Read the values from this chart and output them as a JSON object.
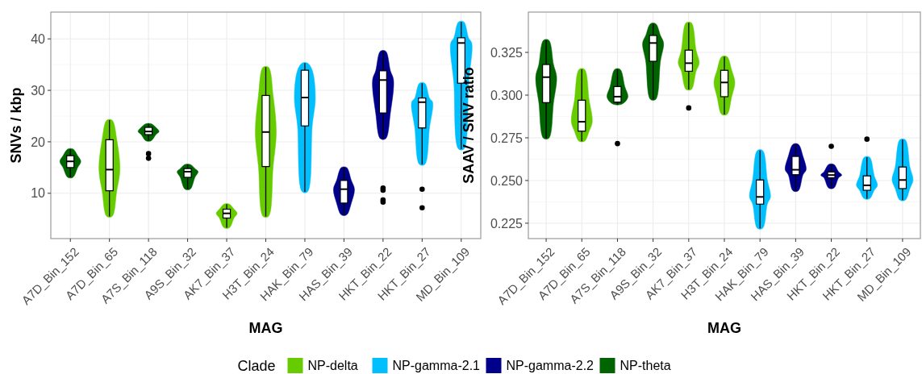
{
  "chart_data": [
    {
      "type": "box",
      "xlabel": "MAG",
      "ylabel": "SNVs / kbp",
      "categories": [
        "A7D_Bin_152",
        "A7D_Bin_65",
        "A7S_Bin_118",
        "A9S_Bin_32",
        "AK7_Bin_37",
        "H3T_Bin_24",
        "HAK_Bin_79",
        "HAS_Bin_39",
        "HKT_Bin_22",
        "HKT_Bin_27",
        "MD_Bin_109"
      ],
      "ylim": [
        1.2,
        45.2
      ],
      "yticks": [
        10,
        20,
        30,
        40
      ],
      "grid": true,
      "series": [
        {
          "color": "#66cc00",
          "boxes": [
            null,
            {
              "low": 5.5,
              "q1": 10.5,
              "median": 14.6,
              "q3": 20.4,
              "high": 24.2
            },
            null,
            null,
            {
              "low": 3.3,
              "q1": 5.2,
              "median": 6.1,
              "q3": 6.9,
              "high": 7.9
            },
            {
              "low": 5.5,
              "q1": 15.2,
              "median": 21.9,
              "q3": 29.0,
              "high": 34.5
            },
            null,
            null,
            null,
            null,
            null
          ]
        },
        {
          "color": "#00bfff",
          "boxes": [
            null,
            null,
            null,
            null,
            null,
            null,
            {
              "low": 10.3,
              "q1": 23.1,
              "median": 28.6,
              "q3": 33.9,
              "high": 35.3
            },
            null,
            null,
            {
              "low": 15.6,
              "q1": 22.7,
              "median": 27.7,
              "q3": 28.5,
              "high": 31.4,
              "outliers": [
                10.8,
                7.2
              ]
            },
            {
              "low": 18.6,
              "q1": 31.4,
              "median": 39.2,
              "q3": 40.2,
              "high": 43.3
            }
          ]
        },
        {
          "color": "#00008b",
          "boxes": [
            null,
            null,
            null,
            null,
            null,
            null,
            null,
            {
              "low": 5.8,
              "q1": 8.1,
              "median": 10.8,
              "q3": 12.5,
              "high": 15.0
            },
            {
              "low": 20.6,
              "q1": 25.6,
              "median": 32.0,
              "q3": 33.8,
              "high": 37.6,
              "outliers": [
                11.0,
                10.6,
                8.7,
                8.3
              ]
            },
            null,
            null
          ]
        },
        {
          "color": "#006400",
          "boxes": [
            {
              "low": 13.1,
              "q1": 15.0,
              "median": 16.2,
              "q3": 17.3,
              "high": 18.6
            },
            null,
            {
              "low": 20.2,
              "q1": 21.4,
              "median": 22.0,
              "q3": 22.8,
              "high": 23.5,
              "outliers": [
                17.7,
                16.8
              ]
            },
            {
              "low": 10.8,
              "q1": 13.1,
              "median": 14.2,
              "q3": 14.8,
              "high": 15.6
            },
            null,
            null,
            null,
            null,
            null,
            null,
            null
          ]
        }
      ]
    },
    {
      "type": "box",
      "xlabel": "MAG",
      "ylabel": "SAAV / SNV ratio",
      "legend": "bottom",
      "legend_title": "Clade",
      "categories": [
        "A7D_Bin_152",
        "A7D_Bin_65",
        "A7S_Bin_118",
        "A9S_Bin_32",
        "AK7_Bin_37",
        "H3T_Bin_24",
        "HAK_Bin_79",
        "HAS_Bin_39",
        "HKT_Bin_22",
        "HKT_Bin_27",
        "MD_Bin_109"
      ],
      "ylim": [
        0.216,
        0.3486
      ],
      "yticks": [
        {
          "value": 0.225,
          "label": "0.225"
        },
        {
          "value": 0.25,
          "label": "0.250"
        },
        {
          "value": 0.275,
          "label": "0.275"
        },
        {
          "value": 0.3,
          "label": "0.300"
        },
        {
          "value": 0.325,
          "label": "0.325"
        }
      ],
      "grid": true,
      "series": [
        {
          "name": "NP-delta",
          "color": "#66cc00",
          "boxes": [
            null,
            {
              "low": 0.273,
              "q1": 0.2789,
              "median": 0.2844,
              "q3": 0.297,
              "high": 0.3151
            },
            null,
            null,
            {
              "low": 0.3033,
              "q1": 0.314,
              "median": 0.3187,
              "q3": 0.3263,
              "high": 0.3423,
              "outliers": [
                0.2925
              ]
            },
            {
              "low": 0.2887,
              "q1": 0.2991,
              "median": 0.3074,
              "q3": 0.3145,
              "high": 0.3225
            },
            null,
            null,
            null,
            null,
            null
          ]
        },
        {
          "name": "NP-gamma-2.1",
          "color": "#00bfff",
          "boxes": [
            null,
            null,
            null,
            null,
            null,
            null,
            {
              "low": 0.222,
              "q1": 0.2362,
              "median": 0.2404,
              "q3": 0.2503,
              "high": 0.2676
            },
            null,
            null,
            {
              "low": 0.2393,
              "q1": 0.2443,
              "median": 0.2472,
              "q3": 0.2527,
              "high": 0.2637,
              "outliers": [
                0.2742
              ]
            },
            {
              "low": 0.2385,
              "q1": 0.2453,
              "median": 0.2503,
              "q3": 0.2579,
              "high": 0.2739
            }
          ]
        },
        {
          "name": "NP-gamma-2.2",
          "color": "#00008b",
          "boxes": [
            null,
            null,
            null,
            null,
            null,
            null,
            null,
            {
              "low": 0.244,
              "q1": 0.2534,
              "median": 0.2563,
              "q3": 0.2641,
              "high": 0.2712
            },
            {
              "low": 0.2456,
              "q1": 0.2516,
              "median": 0.2532,
              "q3": 0.255,
              "high": 0.2594,
              "outliers": [
                0.27
              ]
            },
            null,
            null
          ]
        },
        {
          "name": "NP-theta",
          "color": "#006400",
          "boxes": [
            {
              "low": 0.2747,
              "q1": 0.2956,
              "median": 0.3105,
              "q3": 0.3179,
              "high": 0.3321
            },
            null,
            {
              "low": 0.2944,
              "q1": 0.2959,
              "median": 0.2991,
              "q3": 0.305,
              "high": 0.3151,
              "outliers": [
                0.2716
              ]
            },
            {
              "low": 0.2975,
              "q1": 0.3198,
              "median": 0.3305,
              "q3": 0.3349,
              "high": 0.3418
            },
            null,
            null,
            null,
            null,
            null,
            null,
            null
          ]
        }
      ]
    }
  ]
}
